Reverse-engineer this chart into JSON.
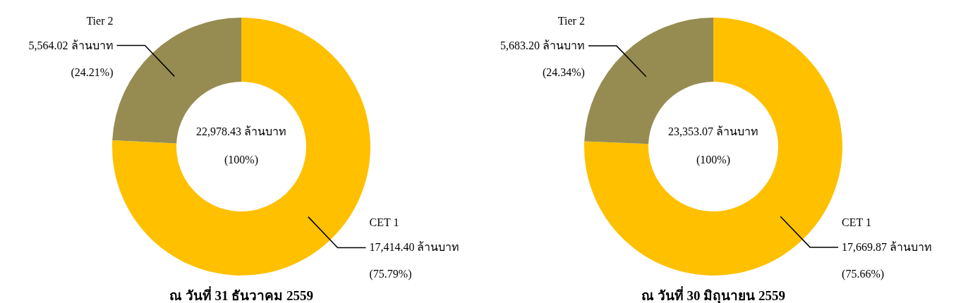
{
  "chart_data": [
    {
      "type": "donut",
      "title": "ณ วันที่ 31 ธันวาคม 2559",
      "categories": [
        "CET 1",
        "Tier 2"
      ],
      "values": [
        75.79,
        24.21
      ],
      "colors": [
        "#ffc000",
        "#968c52"
      ],
      "value_labels": [
        "17,414.40 ล้านบาท\n(75.79%)",
        "5,564.02 ล้านบาท\n(24.21%)"
      ],
      "annotations": [
        "22,978.43 ล้านบาท",
        "(100%)"
      ]
    },
    {
      "type": "donut",
      "title": "ณ วันที่ 30 มิถุนายน 2559",
      "categories": [
        "CET 1",
        "Tier 2"
      ],
      "values": [
        75.66,
        24.34
      ],
      "colors": [
        "#ffc000",
        "#968c52"
      ],
      "value_labels": [
        "17,669.87 ล้านบาท\n(75.66%)",
        "5,683.20 ล้านบาท\n(24.34%)"
      ],
      "annotations": [
        "23,353.07 ล้านบาท",
        "(100%)"
      ]
    }
  ]
}
